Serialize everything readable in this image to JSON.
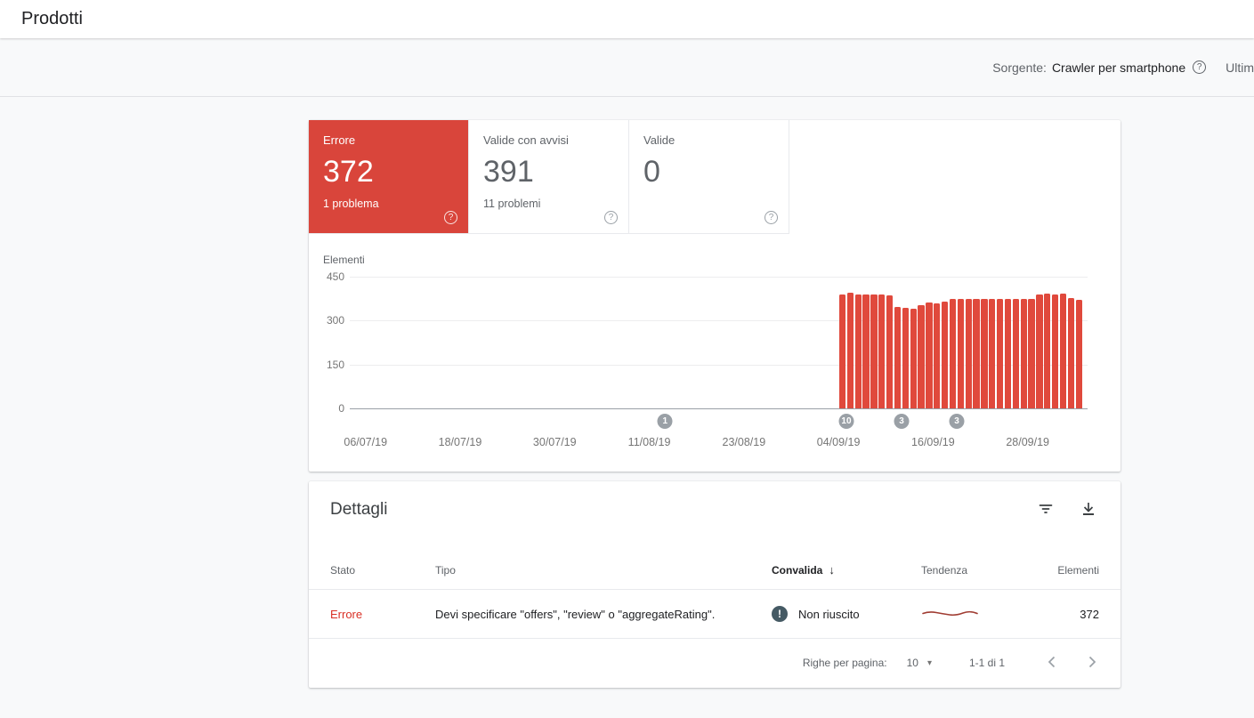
{
  "page": {
    "title": "Prodotti"
  },
  "toolbar": {
    "source_label": "Sorgente:",
    "source_value": "Crawler per smartphone",
    "truncated_text": "Ultim"
  },
  "icons": {
    "help": "?",
    "exclamation": "!",
    "sort_desc_arrow": "↓",
    "dropdown_caret": "▾"
  },
  "summary_cards": [
    {
      "label": "Errore",
      "value": "372",
      "sub": "1 problema",
      "state": "error"
    },
    {
      "label": "Valide con avvisi",
      "value": "391",
      "sub": "11 problemi",
      "state": "warning"
    },
    {
      "label": "Valide",
      "value": "0",
      "sub": "",
      "state": "valid"
    }
  ],
  "chart_data": {
    "type": "bar",
    "ylabel": "Elementi",
    "ylim": [
      0,
      450
    ],
    "yticks": [
      450,
      300,
      150,
      0
    ],
    "grid": true,
    "xtick_labels": [
      "06/07/19",
      "18/07/19",
      "30/07/19",
      "11/08/19",
      "23/08/19",
      "04/09/19",
      "16/09/19",
      "28/09/19"
    ],
    "series": [
      {
        "name": "Errore",
        "start_date": "04/09/19",
        "values": [
          390,
          396,
          389,
          389,
          389,
          389,
          387,
          346,
          344,
          342,
          352,
          362,
          360,
          364,
          374,
          374,
          374,
          374,
          374,
          374,
          374,
          374,
          374,
          374,
          374,
          390,
          392,
          390,
          392,
          377,
          372
        ]
      }
    ],
    "annotations": [
      {
        "label": "1",
        "day": 40
      },
      {
        "label": "10",
        "day": 63
      },
      {
        "label": "3",
        "day": 70
      },
      {
        "label": "3",
        "day": 77
      }
    ],
    "layout": {
      "total_days": 93.6,
      "first_tick_day": 2,
      "tick_step_days": 12,
      "first_bar_day": 62
    },
    "bar_color": "#e0493c",
    "badge_color": "#9aa0a6"
  },
  "details": {
    "title": "Dettagli",
    "columns": {
      "stato": "Stato",
      "tipo": "Tipo",
      "convalida": "Convalida",
      "tendenza": "Tendenza",
      "elementi": "Elementi"
    },
    "sorted_by": "Convalida",
    "row": {
      "stato": "Errore",
      "tipo": "Devi specificare \"offers\", \"review\" o \"aggregateRating\".",
      "convalida": "Non riuscito",
      "elementi": "372"
    },
    "pagination": {
      "rows_per_page_label": "Righe per pagina:",
      "rows_per_page": "10",
      "range": "1-1 di 1"
    }
  },
  "colors": {
    "error_card_bg": "#d9453b",
    "bar_red": "#e0493c",
    "trend_red": "#a03c32",
    "error_text": "#d93025",
    "badge_gray": "#9aa0a6"
  }
}
